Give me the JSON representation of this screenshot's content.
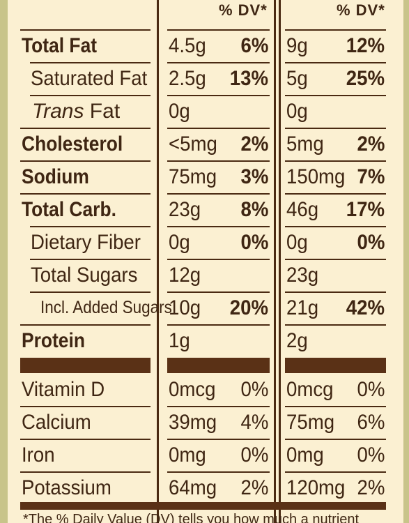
{
  "dv_header": "% DV*",
  "rows_main": [
    {
      "name": "Total Fat",
      "bold": true,
      "indent": 0,
      "c1": "4.5g",
      "d1": "6%",
      "c2": "9g",
      "d2": "12%"
    },
    {
      "name": "Saturated Fat",
      "bold": false,
      "indent": 1,
      "c1": "2.5g",
      "d1": "13%",
      "c2": "5g",
      "d2": "25%"
    },
    {
      "name_italic": "Trans",
      "name_rest": " Fat",
      "bold": false,
      "indent": 1,
      "c1": "0g",
      "d1": "",
      "c2": "0g",
      "d2": ""
    },
    {
      "name": "Cholesterol",
      "bold": true,
      "indent": 0,
      "c1": "<5mg",
      "d1": "2%",
      "c2": "5mg",
      "d2": "2%"
    },
    {
      "name": "Sodium",
      "bold": true,
      "indent": 0,
      "c1": "75mg",
      "d1": "3%",
      "c2": "150mg",
      "d2": "7%"
    },
    {
      "name": "Total Carb.",
      "bold": true,
      "indent": 0,
      "c1": "23g",
      "d1": "8%",
      "c2": "46g",
      "d2": "17%"
    },
    {
      "name": "Dietary Fiber",
      "bold": false,
      "indent": 1,
      "c1": "0g",
      "d1": "0%",
      "c2": "0g",
      "d2": "0%"
    },
    {
      "name": "Total Sugars",
      "bold": false,
      "indent": 1,
      "c1": "12g",
      "d1": "",
      "c2": "23g",
      "d2": ""
    },
    {
      "name": "Incl. Added Sugars",
      "bold": false,
      "indent": 2,
      "c1": "10g",
      "d1": "20%",
      "c2": "21g",
      "d2": "42%"
    },
    {
      "name": "Protein",
      "bold": true,
      "indent": 0,
      "c1": "1g",
      "d1": "",
      "c2": "2g",
      "d2": ""
    }
  ],
  "rows_vitamins": [
    {
      "name": "Vitamin D",
      "c1": "0mcg",
      "d1": "0%",
      "c2": "0mcg",
      "d2": "0%"
    },
    {
      "name": "Calcium",
      "c1": "39mg",
      "d1": "4%",
      "c2": "75mg",
      "d2": "6%"
    },
    {
      "name": "Iron",
      "c1": "0mg",
      "d1": "0%",
      "c2": "0mg",
      "d2": "0%"
    },
    {
      "name": "Potassium",
      "c1": "64mg",
      "d1": "2%",
      "c2": "120mg",
      "d2": "2%"
    }
  ],
  "footnote": "*The % Daily Value (DV) tells you how much a nutrient"
}
